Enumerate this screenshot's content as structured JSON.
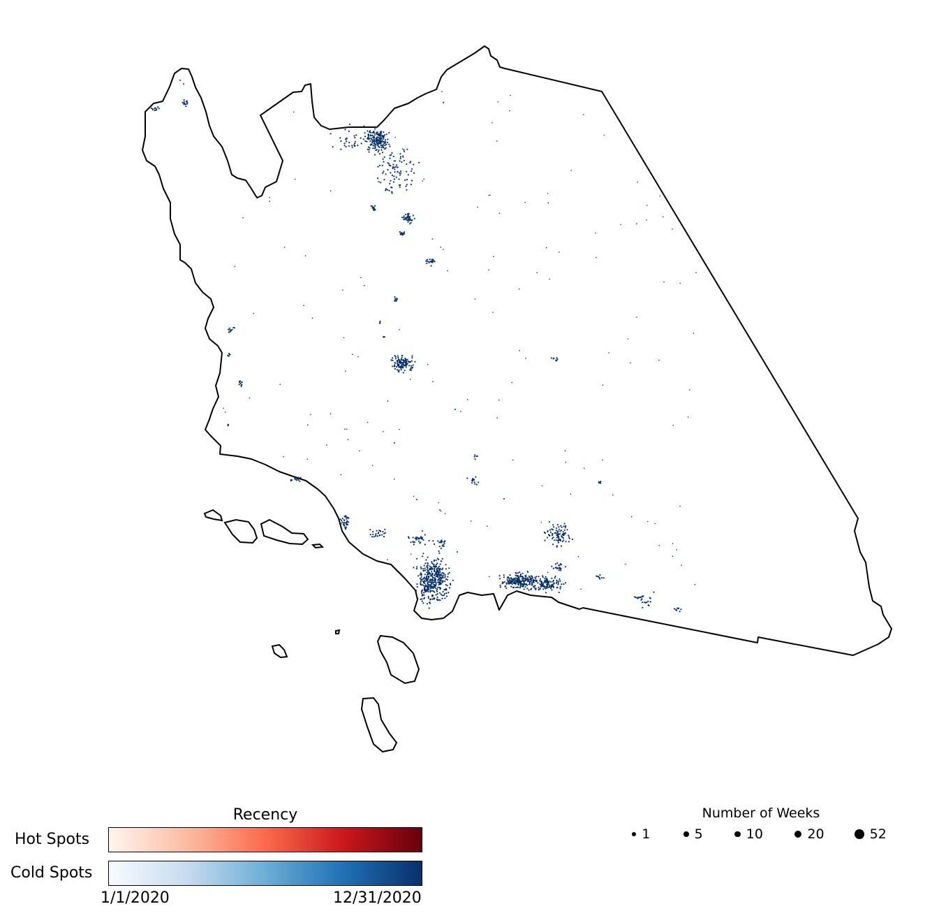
{
  "legend": {
    "recency_title": "Recency",
    "hot_label": "Hot Spots",
    "cold_label": "Cold Spots",
    "start_label": "1/1/2020",
    "end_label": "12/31/2020",
    "hot_colors": [
      "#fff5f0",
      "#fcbba1",
      "#fb6a4a",
      "#cb181d",
      "#67000d"
    ],
    "cold_colors": [
      "#f7fbff",
      "#c6dbef",
      "#6baed6",
      "#2171b5",
      "#08306b"
    ]
  },
  "weeks_legend": {
    "title": "Number of Weeks",
    "items": [
      {
        "label": "1",
        "weeks": 1
      },
      {
        "label": "5",
        "weeks": 5
      },
      {
        "label": "10",
        "weeks": 10
      },
      {
        "label": "20",
        "weeks": 20
      },
      {
        "label": "52",
        "weeks": 52
      }
    ]
  },
  "map": {
    "outline_color": "#000000",
    "cold_spot_color": "#08306b",
    "hot_spot_color": "#cb181d"
  }
}
